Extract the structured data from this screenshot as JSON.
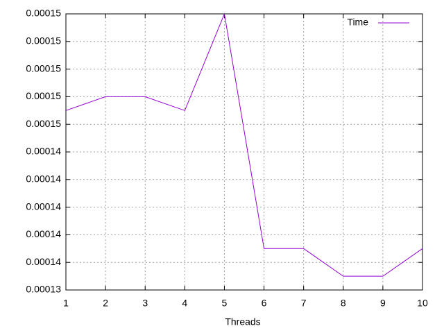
{
  "chart_data": {
    "type": "line",
    "x_label": "Threads",
    "x": [
      1,
      2,
      3,
      4,
      5,
      6,
      7,
      8,
      9,
      10
    ],
    "series": [
      {
        "name": "Time",
        "color": "#9400d3",
        "values": [
          0.000147,
          0.000148,
          0.000148,
          0.000147,
          0.000154,
          0.000137,
          0.000137,
          0.000135,
          0.000135,
          0.000137
        ]
      }
    ],
    "xlim": [
      1,
      10
    ],
    "xticks": [
      1,
      2,
      3,
      4,
      5,
      6,
      7,
      8,
      9,
      10
    ],
    "ylim": [
      0.000134,
      0.000154
    ],
    "yticks": [
      {
        "value": 0.000134,
        "label": "0.00013"
      },
      {
        "value": 0.000136,
        "label": "0.00014"
      },
      {
        "value": 0.000138,
        "label": "0.00014"
      },
      {
        "value": 0.00014,
        "label": "0.00014"
      },
      {
        "value": 0.000142,
        "label": "0.00014"
      },
      {
        "value": 0.000144,
        "label": "0.00014"
      },
      {
        "value": 0.000146,
        "label": "0.00015"
      },
      {
        "value": 0.000148,
        "label": "0.00015"
      },
      {
        "value": 0.00015,
        "label": "0.00015"
      },
      {
        "value": 0.000152,
        "label": "0.00015"
      },
      {
        "value": 0.000154,
        "label": "0.00015"
      }
    ],
    "grid": true,
    "legend": "top-right"
  }
}
